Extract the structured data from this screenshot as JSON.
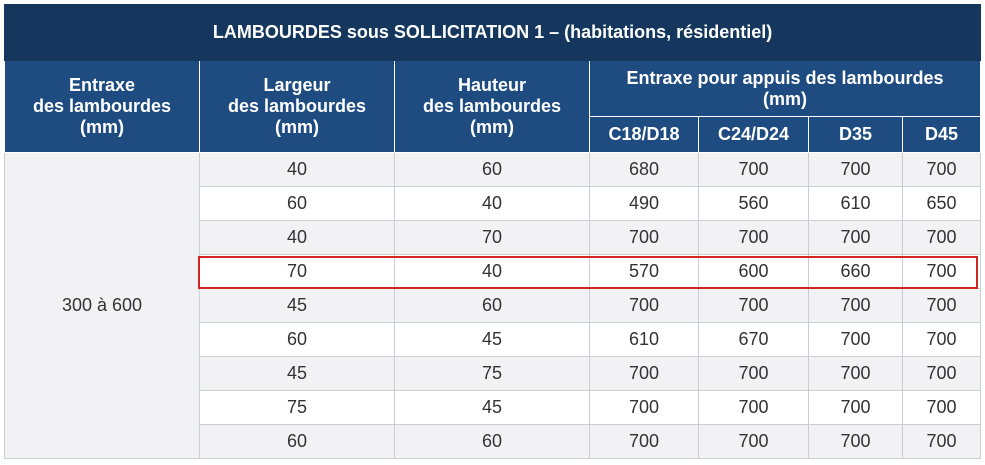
{
  "title": "LAMBOURDES sous SOLLICITATION 1 – (habitations, résidentiel)",
  "headers": {
    "entraxe_lambourdes": [
      "Entraxe",
      "des lambourdes",
      "(mm)"
    ],
    "largeur": [
      "Largeur",
      "des lambourdes",
      "(mm)"
    ],
    "hauteur": [
      "Hauteur",
      "des lambourdes",
      "(mm)"
    ],
    "appuis": [
      "Entraxe pour appuis des lambourdes",
      "(mm)"
    ],
    "classes": [
      "C18/D18",
      "C24/D24",
      "D35",
      "D45"
    ]
  },
  "entraxe_value": "300 à 600",
  "rows": [
    {
      "largeur": "40",
      "hauteur": "60",
      "values": [
        "680",
        "700",
        "700",
        "700"
      ]
    },
    {
      "largeur": "60",
      "hauteur": "40",
      "values": [
        "490",
        "560",
        "610",
        "650"
      ]
    },
    {
      "largeur": "40",
      "hauteur": "70",
      "values": [
        "700",
        "700",
        "700",
        "700"
      ]
    },
    {
      "largeur": "70",
      "hauteur": "40",
      "values": [
        "570",
        "600",
        "660",
        "700"
      ]
    },
    {
      "largeur": "45",
      "hauteur": "60",
      "values": [
        "700",
        "700",
        "700",
        "700"
      ]
    },
    {
      "largeur": "60",
      "hauteur": "45",
      "values": [
        "610",
        "670",
        "700",
        "700"
      ]
    },
    {
      "largeur": "45",
      "hauteur": "75",
      "values": [
        "700",
        "700",
        "700",
        "700"
      ]
    },
    {
      "largeur": "75",
      "hauteur": "45",
      "values": [
        "700",
        "700",
        "700",
        "700"
      ]
    },
    {
      "largeur": "60",
      "hauteur": "60",
      "values": [
        "700",
        "700",
        "700",
        "700"
      ]
    }
  ],
  "highlighted_row": 3,
  "colors": {
    "title_bg": "#15375d",
    "header_bg": "#1f4c80",
    "highlight_border": "#d42525"
  }
}
